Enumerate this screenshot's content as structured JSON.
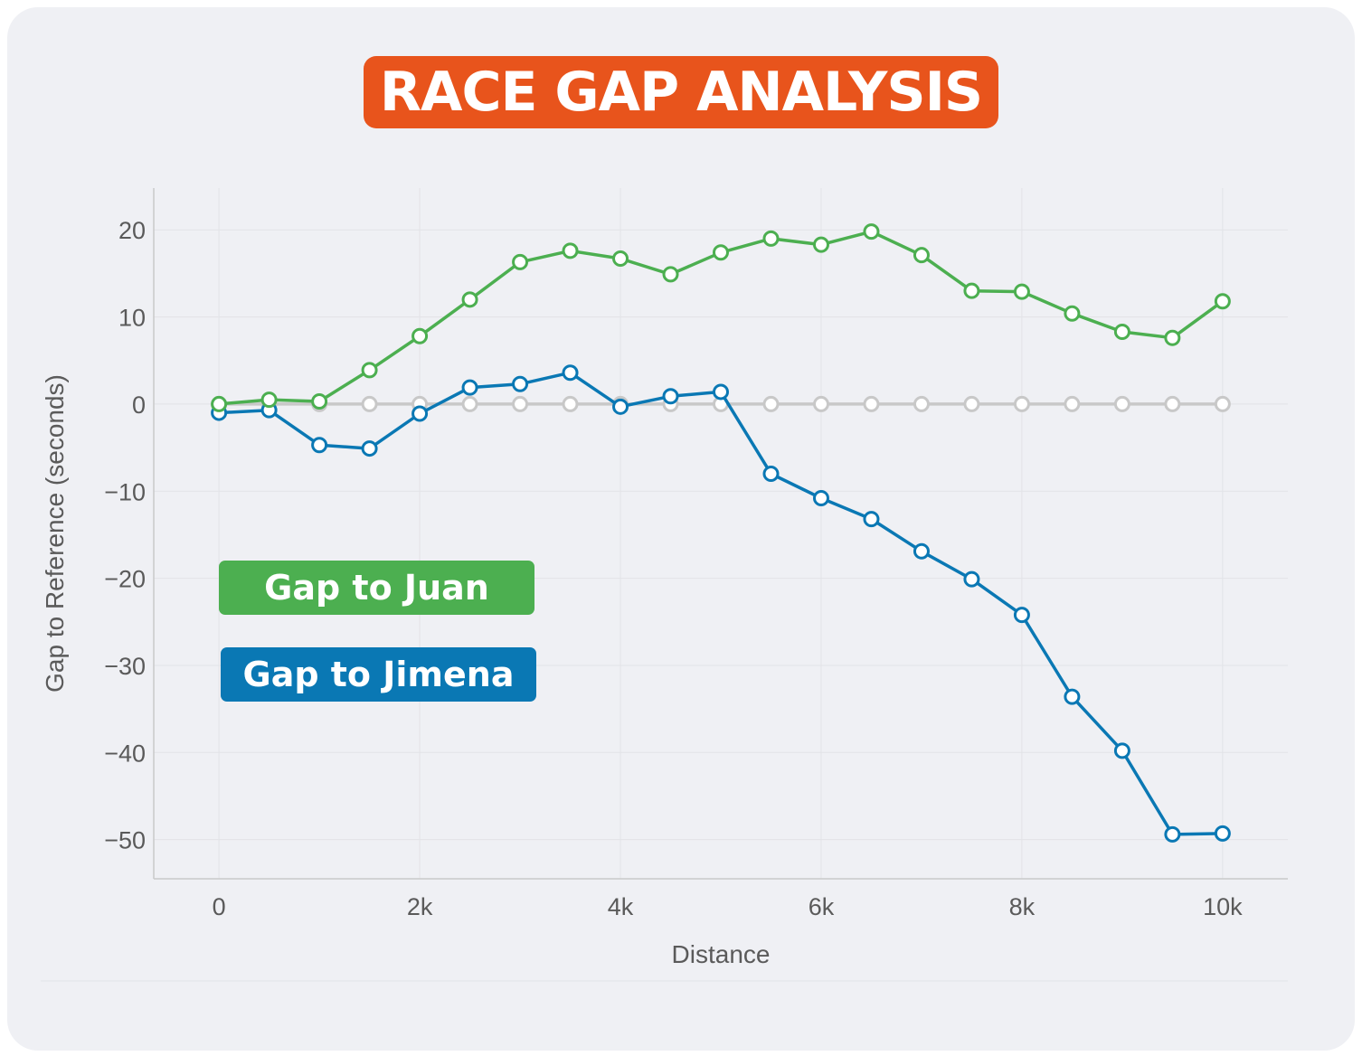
{
  "title": "RACE GAP ANALYSIS",
  "chart_data": {
    "type": "line",
    "title": "RACE GAP ANALYSIS",
    "xlabel": "Distance",
    "ylabel": "Gap to Reference (seconds)",
    "xlim": [
      -650,
      10650
    ],
    "ylim": [
      -54.5,
      24.8
    ],
    "x_ticks": [
      0,
      2000,
      4000,
      6000,
      8000,
      10000
    ],
    "x_tick_labels": [
      "0",
      "2k",
      "4k",
      "6k",
      "8k",
      "10k"
    ],
    "y_ticks": [
      20,
      10,
      0,
      -10,
      -20,
      -30,
      -40,
      -50
    ],
    "y_tick_labels": [
      "20",
      "10",
      "0",
      "−10",
      "−20",
      "−30",
      "−40",
      "−50"
    ],
    "grid": true,
    "legend_placement": "lower-left inside plot",
    "x": [
      0,
      500,
      1000,
      1500,
      2000,
      2500,
      3000,
      3500,
      4000,
      4500,
      5000,
      5500,
      6000,
      6500,
      7000,
      7500,
      8000,
      8500,
      9000,
      9500,
      10000
    ],
    "series": [
      {
        "name": "Gap to Juan",
        "color": "#4caf50",
        "values": [
          0,
          0.5,
          0.3,
          3.9,
          7.8,
          12,
          16.3,
          17.6,
          16.7,
          14.9,
          17.4,
          19.0,
          18.3,
          19.8,
          17.1,
          13.0,
          12.9,
          10.4,
          8.3,
          7.6,
          11.8
        ]
      },
      {
        "name": "Gap to Jimena",
        "color": "#0a78b4",
        "values": [
          -1.0,
          -0.7,
          -4.7,
          -5.1,
          -1.1,
          1.9,
          2.3,
          3.6,
          -0.3,
          0.9,
          1.4,
          -8.0,
          -10.8,
          -13.2,
          -16.9,
          -20.1,
          -24.2,
          -33.6,
          -39.8,
          -49.4,
          -49.3
        ]
      },
      {
        "name": "",
        "color": "#c8c8c8",
        "values": [
          0,
          0,
          0,
          0,
          0,
          0,
          0,
          0,
          0,
          0,
          0,
          0,
          0,
          0,
          0,
          0,
          0,
          0,
          0,
          0,
          0
        ]
      }
    ]
  }
}
